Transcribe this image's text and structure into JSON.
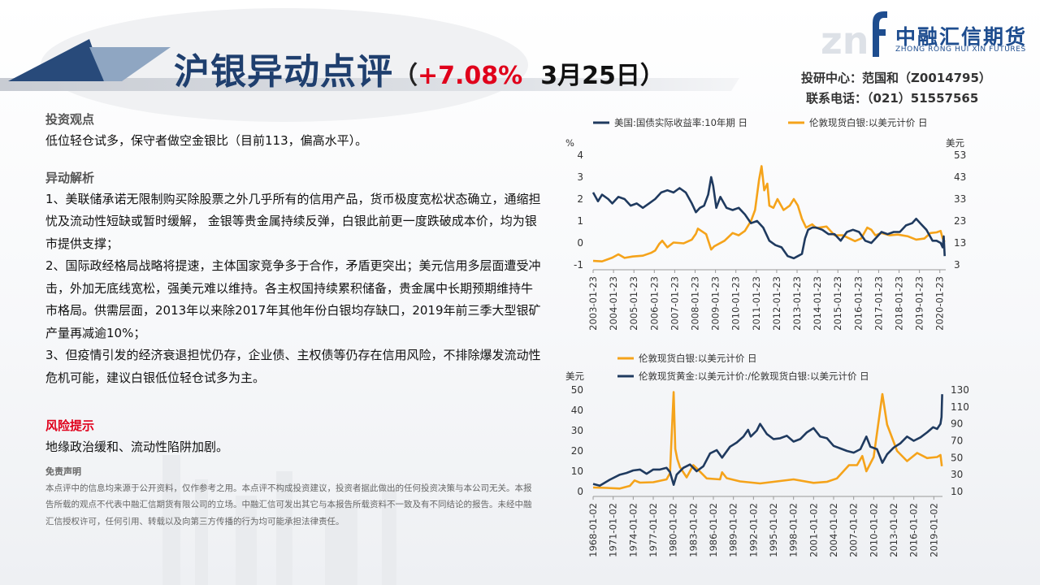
{
  "header": {
    "title": "沪银异动点评",
    "paren_open": "（",
    "change": "+7.08%",
    "date": "3月25日）",
    "logo_cn": "中融汇信期货",
    "logo_en": "ZHONG RONG HUI XIN FUTURES",
    "analyst": "投研中心：范国和（Z0014795）",
    "phone": "联系电话：（021）51557565"
  },
  "content": {
    "view_title": "投资观点",
    "view_text": "低位轻仓试多，保守者做空金银比（目前113，偏高水平）。",
    "analysis_title": "异动解析",
    "analysis_1": "1、美联储承诺无限制购买除股票之外几乎所有的信用产品，货币极度宽松状态确立，通缩担忧及流动性短缺或暂时缓解，  金银等贵金属持续反弹，白银此前更一度跌破成本价，均为银市提供支撑；",
    "analysis_2": "2、国际政经格局战略将提速，主体国家竞争多于合作，矛盾更突出；美元信用多层面遭受冲击，外加无底线宽松，强美元难以维持。各主权国持续累积储备，贵金属中长期预期维持牛市格局。供需层面，2013年以来除2017年其他年份白银均存缺口，2019年前三季大型银矿产量再减逾10%；",
    "analysis_3": "3、但疫情引发的经济衰退担忧仍存，企业债、主权债等仍存在信用风险，不排除爆发流动性危机可能，建议白银低位轻仓试多为主。",
    "risk_title": "风险提示",
    "risk_text": "地缘政治缓和、流动性陷阱加剧。",
    "disclaimer_title": "免责声明",
    "disclaimer_text": "本点评中的信息均来源于公开资料，仅作参考之用。本点评不构成投资建议，投资者据此做出的任何投资决策与本公司无关。本报告所载的观点不代表中融汇信期货有限公司的立场。中融汇信可发出其它与本报告所载资料不一致及有不同结论的报告。未经中融汇信授权许可，任何引用、转载以及向第三方传播的行为均可能承担法律责任。"
  },
  "colors": {
    "navy": "#1f3a5f",
    "orange": "#f5a31a",
    "red": "#e0001b"
  },
  "chart_data": [
    {
      "type": "line",
      "legend_placement": "top",
      "x_ticks": [
        "2003-01-23",
        "2004-01-23",
        "2005-01-23",
        "2006-01-23",
        "2007-01-23",
        "2008-01-23",
        "2009-01-23",
        "2010-01-23",
        "2011-01-23",
        "2012-01-23",
        "2013-01-23",
        "2014-01-23",
        "2015-01-23",
        "2016-01-23",
        "2017-01-23",
        "2018-01-23",
        "2019-01-23",
        "2020-01-23"
      ],
      "xlim": [
        2003.06,
        2020.35
      ],
      "left_unit": "%",
      "right_unit": "美元",
      "left_ylim": [
        -1,
        4
      ],
      "left_ticks": [
        4,
        3,
        2,
        1,
        0,
        -1
      ],
      "right_ylim": [
        3,
        53
      ],
      "right_ticks": [
        53,
        43,
        33,
        23,
        13,
        3
      ],
      "series": [
        {
          "name": "美国:国债实际收益率:10年期 日",
          "axis": "left",
          "color": "#1f3a5f",
          "x": [
            2003.06,
            2003.3,
            2003.5,
            2003.8,
            2004.0,
            2004.3,
            2004.6,
            2004.9,
            2005.2,
            2005.5,
            2005.8,
            2006.1,
            2006.4,
            2006.7,
            2007.0,
            2007.3,
            2007.6,
            2007.9,
            2008.1,
            2008.3,
            2008.5,
            2008.7,
            2008.85,
            2008.95,
            2009.1,
            2009.3,
            2009.6,
            2009.9,
            2010.2,
            2010.5,
            2010.8,
            2011.1,
            2011.4,
            2011.7,
            2012.0,
            2012.3,
            2012.6,
            2012.9,
            2013.1,
            2013.3,
            2013.45,
            2013.6,
            2013.8,
            2014.0,
            2014.3,
            2014.6,
            2014.9,
            2015.2,
            2015.5,
            2015.8,
            2016.1,
            2016.4,
            2016.7,
            2016.9,
            2017.2,
            2017.5,
            2017.8,
            2018.1,
            2018.4,
            2018.7,
            2018.9,
            2019.1,
            2019.4,
            2019.7,
            2019.9,
            2020.1,
            2020.2,
            2020.25,
            2020.3
          ],
          "values": [
            2.3,
            1.9,
            2.2,
            2.0,
            1.8,
            2.1,
            2.0,
            1.7,
            1.8,
            1.6,
            1.8,
            2.0,
            2.3,
            2.4,
            2.3,
            2.5,
            2.3,
            1.8,
            1.4,
            1.6,
            1.7,
            2.2,
            3.0,
            2.6,
            1.6,
            2.1,
            1.6,
            1.5,
            1.6,
            1.3,
            0.9,
            1.0,
            0.7,
            0.1,
            -0.1,
            -0.2,
            -0.6,
            -0.7,
            -0.6,
            -0.5,
            0.2,
            0.6,
            0.7,
            0.7,
            0.6,
            0.4,
            0.4,
            0.1,
            0.5,
            0.6,
            0.5,
            0.1,
            0.0,
            0.2,
            0.5,
            0.4,
            0.5,
            0.5,
            0.8,
            0.9,
            1.1,
            0.9,
            0.6,
            0.1,
            0.1,
            0.0,
            -0.2,
            0.3,
            -0.6
          ]
        },
        {
          "name": "伦敦现货白银:以美元计价 日",
          "axis": "right",
          "color": "#f5a31a",
          "x": [
            2003.06,
            2003.5,
            2004.0,
            2004.3,
            2004.6,
            2005.0,
            2005.5,
            2005.9,
            2006.1,
            2006.3,
            2006.45,
            2006.7,
            2007.0,
            2007.5,
            2007.9,
            2008.1,
            2008.2,
            2008.6,
            2008.85,
            2009.0,
            2009.5,
            2009.9,
            2010.2,
            2010.5,
            2010.8,
            2011.0,
            2011.2,
            2011.32,
            2011.45,
            2011.6,
            2011.7,
            2011.9,
            2012.1,
            2012.4,
            2012.7,
            2012.9,
            2013.1,
            2013.3,
            2013.5,
            2013.8,
            2014.0,
            2014.5,
            2014.9,
            2015.3,
            2015.9,
            2016.2,
            2016.5,
            2016.7,
            2016.9,
            2017.2,
            2017.6,
            2018.0,
            2018.5,
            2018.9,
            2019.3,
            2019.6,
            2019.9,
            2020.1,
            2020.2,
            2020.3
          ],
          "values": [
            4.8,
            4.6,
            6.3,
            7.8,
            6.2,
            6.8,
            7.2,
            8.5,
            9.5,
            12.5,
            14.0,
            11.0,
            13.2,
            12.8,
            14.5,
            17.2,
            19.5,
            17.0,
            10.0,
            11.5,
            14.0,
            17.5,
            16.5,
            18.5,
            23.0,
            28.0,
            42.0,
            48.0,
            37.0,
            40.0,
            30.0,
            29.0,
            33.0,
            28.0,
            30.0,
            33.0,
            30.0,
            24.0,
            20.0,
            21.5,
            19.8,
            20.5,
            16.5,
            16.5,
            13.8,
            15.0,
            20.0,
            19.0,
            16.5,
            17.5,
            16.5,
            16.8,
            16.0,
            14.5,
            15.0,
            17.5,
            17.8,
            18.5,
            15.0,
            13.5
          ]
        }
      ]
    },
    {
      "type": "line",
      "legend_placement": "top",
      "x_ticks": [
        "1968-01-02",
        "1971-01-02",
        "1974-01-02",
        "1977-01-02",
        "1980-01-02",
        "1983-01-02",
        "1986-01-02",
        "1989-01-02",
        "1992-01-02",
        "1995-01-02",
        "1998-01-02",
        "2001-01-02",
        "2004-01-02",
        "2007-01-02",
        "2010-01-02",
        "2013-01-02",
        "2016-01-02",
        "2019-01-02"
      ],
      "xlim": [
        1968.0,
        2020.3
      ],
      "left_unit": "美元",
      "left_ylim": [
        0,
        50
      ],
      "left_ticks": [
        50,
        40,
        30,
        20,
        10,
        0
      ],
      "right_ylim": [
        10,
        130
      ],
      "right_ticks": [
        130,
        110,
        90,
        70,
        50,
        30,
        10
      ],
      "series": [
        {
          "name": "伦敦现货白银:以美元计价 日",
          "axis": "left",
          "color": "#f5a31a",
          "x": [
            1968.0,
            1970.0,
            1972.0,
            1973.5,
            1974.2,
            1975.0,
            1977.0,
            1979.0,
            1979.5,
            1980.05,
            1980.3,
            1980.6,
            1981.0,
            1982.0,
            1983.0,
            1983.5,
            1985.0,
            1987.0,
            1987.3,
            1988.0,
            1990.0,
            1993.0,
            1996.0,
            1998.0,
            2001.0,
            2003.0,
            2004.5,
            2006.3,
            2007.5,
            2008.3,
            2008.9,
            2010.0,
            2011.3,
            2012.0,
            2013.5,
            2015.0,
            2016.5,
            2018.0,
            2019.5,
            2020.0,
            2020.2
          ],
          "values": [
            2.0,
            1.8,
            1.5,
            2.8,
            5.5,
            4.4,
            4.6,
            6.0,
            9.0,
            49.0,
            21.0,
            16.0,
            12.0,
            7.0,
            13.0,
            11.5,
            6.5,
            6.0,
            9.5,
            6.6,
            5.0,
            4.0,
            5.2,
            6.0,
            4.3,
            4.8,
            6.5,
            13.0,
            13.0,
            17.5,
            10.0,
            17.0,
            48.0,
            33.0,
            20.0,
            15.0,
            19.0,
            16.5,
            17.0,
            18.0,
            12.5
          ]
        },
        {
          "name": "伦敦现货黄金:以美元计价:/伦敦现货白银:以美元计价 日",
          "axis": "right",
          "color": "#1f3a5f",
          "x": [
            1968.0,
            1969.0,
            1970.5,
            1972.0,
            1973.0,
            1974.0,
            1975.0,
            1976.0,
            1977.0,
            1978.0,
            1979.0,
            1979.5,
            1980.05,
            1980.5,
            1981.5,
            1982.5,
            1983.5,
            1984.5,
            1985.5,
            1986.5,
            1987.3,
            1988.5,
            1989.5,
            1990.5,
            1991.2,
            1991.6,
            1992.5,
            1993.0,
            1994.0,
            1995.0,
            1996.0,
            1997.0,
            1998.0,
            1999.0,
            2000.0,
            2001.0,
            2002.0,
            2003.0,
            2004.0,
            2005.0,
            2006.0,
            2007.0,
            2008.0,
            2008.9,
            2009.5,
            2010.5,
            2011.3,
            2012.0,
            2013.0,
            2014.0,
            2015.0,
            2016.0,
            2017.0,
            2018.0,
            2018.9,
            2019.5,
            2020.0,
            2020.15,
            2020.25
          ],
          "values": [
            19,
            17,
            24,
            30,
            32,
            35,
            36,
            31,
            36,
            36,
            38,
            33,
            18,
            30,
            38,
            42,
            34,
            40,
            55,
            59,
            50,
            63,
            68,
            75,
            83,
            75,
            82,
            90,
            78,
            72,
            73,
            76,
            69,
            72,
            80,
            85,
            75,
            73,
            64,
            61,
            58,
            56,
            60,
            75,
            63,
            60,
            44,
            54,
            62,
            67,
            75,
            70,
            74,
            80,
            86,
            84,
            90,
            98,
            125
          ]
        }
      ]
    }
  ]
}
